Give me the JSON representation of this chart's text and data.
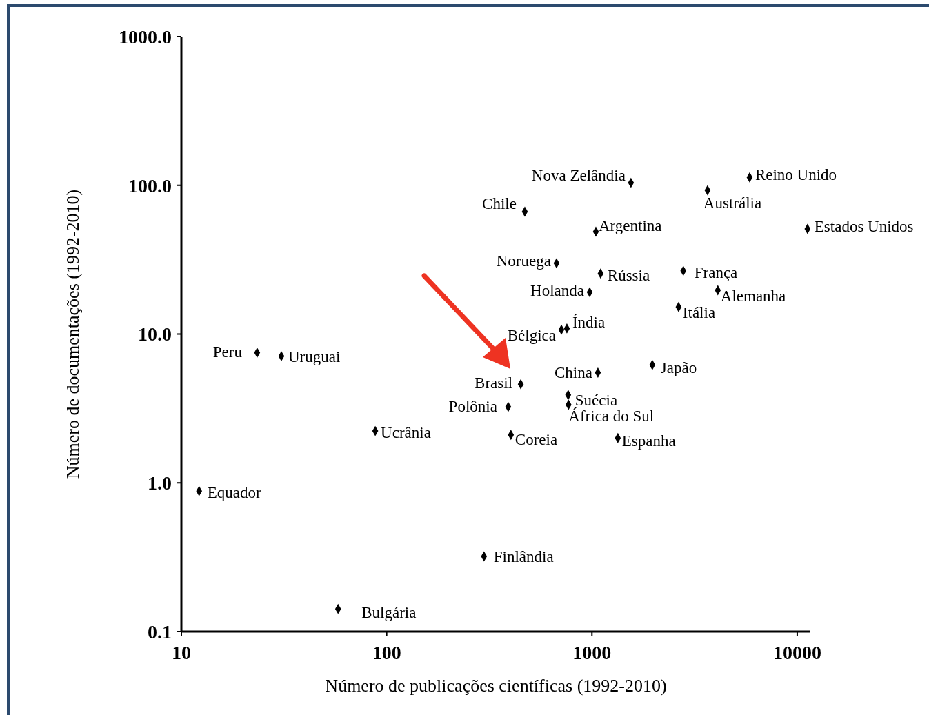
{
  "chart_data": {
    "type": "scatter",
    "xlabel": "Número de publicações científicas (1992-2010)",
    "ylabel": "Número de documentações (1992-2010)",
    "log": "xy",
    "marker": "diamond",
    "xlim": [
      10,
      11590
    ],
    "ylim": [
      0.1,
      1000
    ],
    "xticks": [
      10,
      100,
      1000,
      10000
    ],
    "yticks": [
      {
        "value": 0.1,
        "label": "0.1"
      },
      {
        "value": 1,
        "label": "1.0"
      },
      {
        "value": 10,
        "label": "10.0"
      },
      {
        "value": 100,
        "label": "100.0"
      },
      {
        "value": 1000,
        "label": "1000.0"
      }
    ],
    "series": [
      {
        "color": "#000000",
        "x": [
          1549,
          5862,
          3656,
          471,
          1045,
          11220,
          672,
          1102,
          2786,
          975,
          4104,
          2642,
          755,
          710,
          23.4,
          30.7,
          1968,
          1069,
          450,
          766,
          769,
          391,
          88,
          403,
          1337,
          12.2,
          298,
          58
        ],
        "values": [
          104,
          113,
          92.5,
          66.5,
          48.8,
          50.9,
          29.9,
          25.5,
          26.6,
          19.1,
          19.7,
          15.2,
          10.9,
          10.7,
          7.5,
          7.1,
          6.2,
          5.5,
          4.6,
          3.9,
          3.35,
          3.24,
          2.23,
          2.1,
          2.0,
          0.88,
          0.32,
          0.142
        ]
      }
    ],
    "annotations": [
      {
        "text": "Nova Zelândia",
        "x": 1549,
        "y": 104
      },
      {
        "text": "Reino Unido",
        "x": 5862,
        "y": 113
      },
      {
        "text": "Austrália",
        "x": 3656,
        "y": 92.5
      },
      {
        "text": "Chile",
        "x": 471,
        "y": 66.5
      },
      {
        "text": "Argentina",
        "x": 1045,
        "y": 48.8
      },
      {
        "text": "Estados Unidos",
        "x": 11220,
        "y": 50.9
      },
      {
        "text": "Noruega",
        "x": 672,
        "y": 29.9
      },
      {
        "text": "Rússia",
        "x": 1102,
        "y": 25.5
      },
      {
        "text": "França",
        "x": 2786,
        "y": 26.6
      },
      {
        "text": "Holanda",
        "x": 975,
        "y": 19.1
      },
      {
        "text": "Alemanha",
        "x": 4104,
        "y": 19.7
      },
      {
        "text": "Itália",
        "x": 2642,
        "y": 15.2
      },
      {
        "text": "Índia",
        "x": 755,
        "y": 10.9
      },
      {
        "text": "Bélgica",
        "x": 710,
        "y": 10.7
      },
      {
        "text": "Peru",
        "x": 23.4,
        "y": 7.5
      },
      {
        "text": "Uruguai",
        "x": 30.7,
        "y": 7.1
      },
      {
        "text": "Japão",
        "x": 1968,
        "y": 6.2
      },
      {
        "text": "China",
        "x": 1069,
        "y": 5.5
      },
      {
        "text": "Brasil",
        "x": 450,
        "y": 4.6
      },
      {
        "text": "Suécia",
        "x": 766,
        "y": 3.9
      },
      {
        "text": "África do Sul",
        "x": 769,
        "y": 3.35
      },
      {
        "text": "Polônia",
        "x": 391,
        "y": 3.24
      },
      {
        "text": "Ucrânia",
        "x": 88,
        "y": 2.23
      },
      {
        "text": "Coreia",
        "x": 403,
        "y": 2.1
      },
      {
        "text": "Espanha",
        "x": 1337,
        "y": 2.0
      },
      {
        "text": "Equador",
        "x": 12.2,
        "y": 0.88
      },
      {
        "text": "Finlândia",
        "x": 298,
        "y": 0.32
      },
      {
        "text": "Bulgária",
        "x": 58,
        "y": 0.142
      }
    ]
  }
}
